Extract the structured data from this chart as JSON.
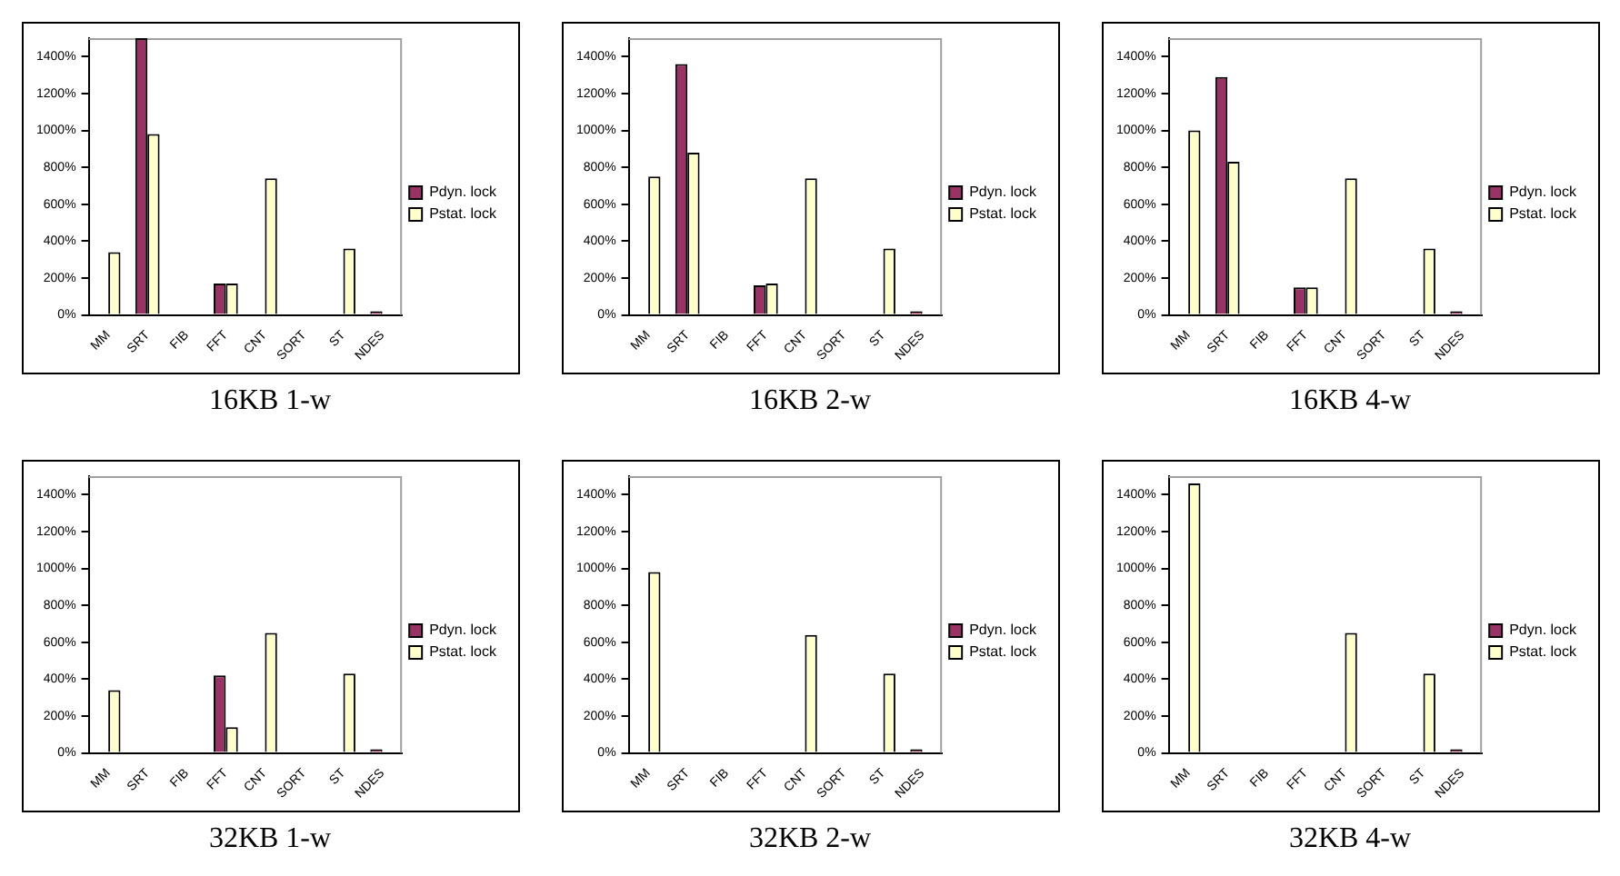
{
  "chart_data": [
    {
      "type": "bar",
      "title": "16KB 1-w",
      "categories": [
        "MM",
        "SRT",
        "FIB",
        "FFT",
        "CNT",
        "SORT",
        "ST",
        "NDES"
      ],
      "legend": "right",
      "ylim": [
        0,
        1500
      ],
      "yticks": [
        {
          "value": 0,
          "label": "0%"
        },
        {
          "value": 200,
          "label": "200%"
        },
        {
          "value": 400,
          "label": "400%"
        },
        {
          "value": 600,
          "label": "600%"
        },
        {
          "value": 800,
          "label": "800%"
        },
        {
          "value": 1000,
          "label": "1000%"
        },
        {
          "value": 1200,
          "label": "1200%"
        },
        {
          "value": 1400,
          "label": "1400%"
        }
      ],
      "series": [
        {
          "name": "Pdyn. lock",
          "color": "#993366",
          "values": [
            0,
            1500,
            0,
            170,
            0,
            0,
            0,
            20
          ]
        },
        {
          "name": "Pstat. lock",
          "color": "#ffffcc",
          "values": [
            340,
            980,
            0,
            170,
            740,
            0,
            360,
            0
          ]
        }
      ]
    },
    {
      "type": "bar",
      "title": "16KB 2-w",
      "categories": [
        "MM",
        "SRT",
        "FIB",
        "FFT",
        "CNT",
        "SORT",
        "ST",
        "NDES"
      ],
      "legend": "right",
      "ylim": [
        0,
        1500
      ],
      "yticks": [
        {
          "value": 0,
          "label": "0%"
        },
        {
          "value": 200,
          "label": "200%"
        },
        {
          "value": 400,
          "label": "400%"
        },
        {
          "value": 600,
          "label": "600%"
        },
        {
          "value": 800,
          "label": "800%"
        },
        {
          "value": 1000,
          "label": "1000%"
        },
        {
          "value": 1200,
          "label": "1200%"
        },
        {
          "value": 1400,
          "label": "1400%"
        }
      ],
      "series": [
        {
          "name": "Pdyn. lock",
          "color": "#993366",
          "values": [
            0,
            1360,
            0,
            160,
            0,
            0,
            0,
            20
          ]
        },
        {
          "name": "Pstat. lock",
          "color": "#ffffcc",
          "values": [
            750,
            880,
            0,
            170,
            740,
            0,
            360,
            0
          ]
        }
      ]
    },
    {
      "type": "bar",
      "title": "16KB 4-w",
      "categories": [
        "MM",
        "SRT",
        "FIB",
        "FFT",
        "CNT",
        "SORT",
        "ST",
        "NDES"
      ],
      "legend": "right",
      "ylim": [
        0,
        1500
      ],
      "yticks": [
        {
          "value": 0,
          "label": "0%"
        },
        {
          "value": 200,
          "label": "200%"
        },
        {
          "value": 400,
          "label": "400%"
        },
        {
          "value": 600,
          "label": "600%"
        },
        {
          "value": 800,
          "label": "800%"
        },
        {
          "value": 1000,
          "label": "1000%"
        },
        {
          "value": 1200,
          "label": "1200%"
        },
        {
          "value": 1400,
          "label": "1400%"
        }
      ],
      "series": [
        {
          "name": "Pdyn. lock",
          "color": "#993366",
          "values": [
            0,
            1290,
            0,
            150,
            0,
            0,
            0,
            20
          ]
        },
        {
          "name": "Pstat. lock",
          "color": "#ffffcc",
          "values": [
            1000,
            830,
            0,
            150,
            740,
            0,
            360,
            0
          ]
        }
      ]
    },
    {
      "type": "bar",
      "title": "32KB 1-w",
      "categories": [
        "MM",
        "SRT",
        "FIB",
        "FFT",
        "CNT",
        "SORT",
        "ST",
        "NDES"
      ],
      "legend": "right",
      "ylim": [
        0,
        1500
      ],
      "yticks": [
        {
          "value": 0,
          "label": "0%"
        },
        {
          "value": 200,
          "label": "200%"
        },
        {
          "value": 400,
          "label": "400%"
        },
        {
          "value": 600,
          "label": "600%"
        },
        {
          "value": 800,
          "label": "800%"
        },
        {
          "value": 1000,
          "label": "1000%"
        },
        {
          "value": 1200,
          "label": "1200%"
        },
        {
          "value": 1400,
          "label": "1400%"
        }
      ],
      "series": [
        {
          "name": "Pdyn. lock",
          "color": "#993366",
          "values": [
            0,
            0,
            0,
            420,
            0,
            0,
            0,
            20
          ]
        },
        {
          "name": "Pstat. lock",
          "color": "#ffffcc",
          "values": [
            340,
            0,
            0,
            140,
            650,
            0,
            430,
            0
          ]
        }
      ]
    },
    {
      "type": "bar",
      "title": "32KB 2-w",
      "categories": [
        "MM",
        "SRT",
        "FIB",
        "FFT",
        "CNT",
        "SORT",
        "ST",
        "NDES"
      ],
      "legend": "right",
      "ylim": [
        0,
        1500
      ],
      "yticks": [
        {
          "value": 0,
          "label": "0%"
        },
        {
          "value": 200,
          "label": "200%"
        },
        {
          "value": 400,
          "label": "400%"
        },
        {
          "value": 600,
          "label": "600%"
        },
        {
          "value": 800,
          "label": "800%"
        },
        {
          "value": 1000,
          "label": "1000%"
        },
        {
          "value": 1200,
          "label": "1200%"
        },
        {
          "value": 1400,
          "label": "1400%"
        }
      ],
      "series": [
        {
          "name": "Pdyn. lock",
          "color": "#993366",
          "values": [
            0,
            0,
            0,
            0,
            0,
            0,
            0,
            20
          ]
        },
        {
          "name": "Pstat. lock",
          "color": "#ffffcc",
          "values": [
            980,
            0,
            0,
            0,
            640,
            0,
            430,
            0
          ]
        }
      ]
    },
    {
      "type": "bar",
      "title": "32KB 4-w",
      "categories": [
        "MM",
        "SRT",
        "FIB",
        "FFT",
        "CNT",
        "SORT",
        "ST",
        "NDES"
      ],
      "legend": "right",
      "ylim": [
        0,
        1500
      ],
      "yticks": [
        {
          "value": 0,
          "label": "0%"
        },
        {
          "value": 200,
          "label": "200%"
        },
        {
          "value": 400,
          "label": "400%"
        },
        {
          "value": 600,
          "label": "600%"
        },
        {
          "value": 800,
          "label": "800%"
        },
        {
          "value": 1000,
          "label": "1000%"
        },
        {
          "value": 1200,
          "label": "1200%"
        },
        {
          "value": 1400,
          "label": "1400%"
        }
      ],
      "series": [
        {
          "name": "Pdyn. lock",
          "color": "#993366",
          "values": [
            0,
            0,
            0,
            0,
            0,
            0,
            0,
            20
          ]
        },
        {
          "name": "Pstat. lock",
          "color": "#ffffcc",
          "values": [
            1460,
            0,
            0,
            0,
            650,
            0,
            430,
            0
          ]
        }
      ]
    }
  ]
}
